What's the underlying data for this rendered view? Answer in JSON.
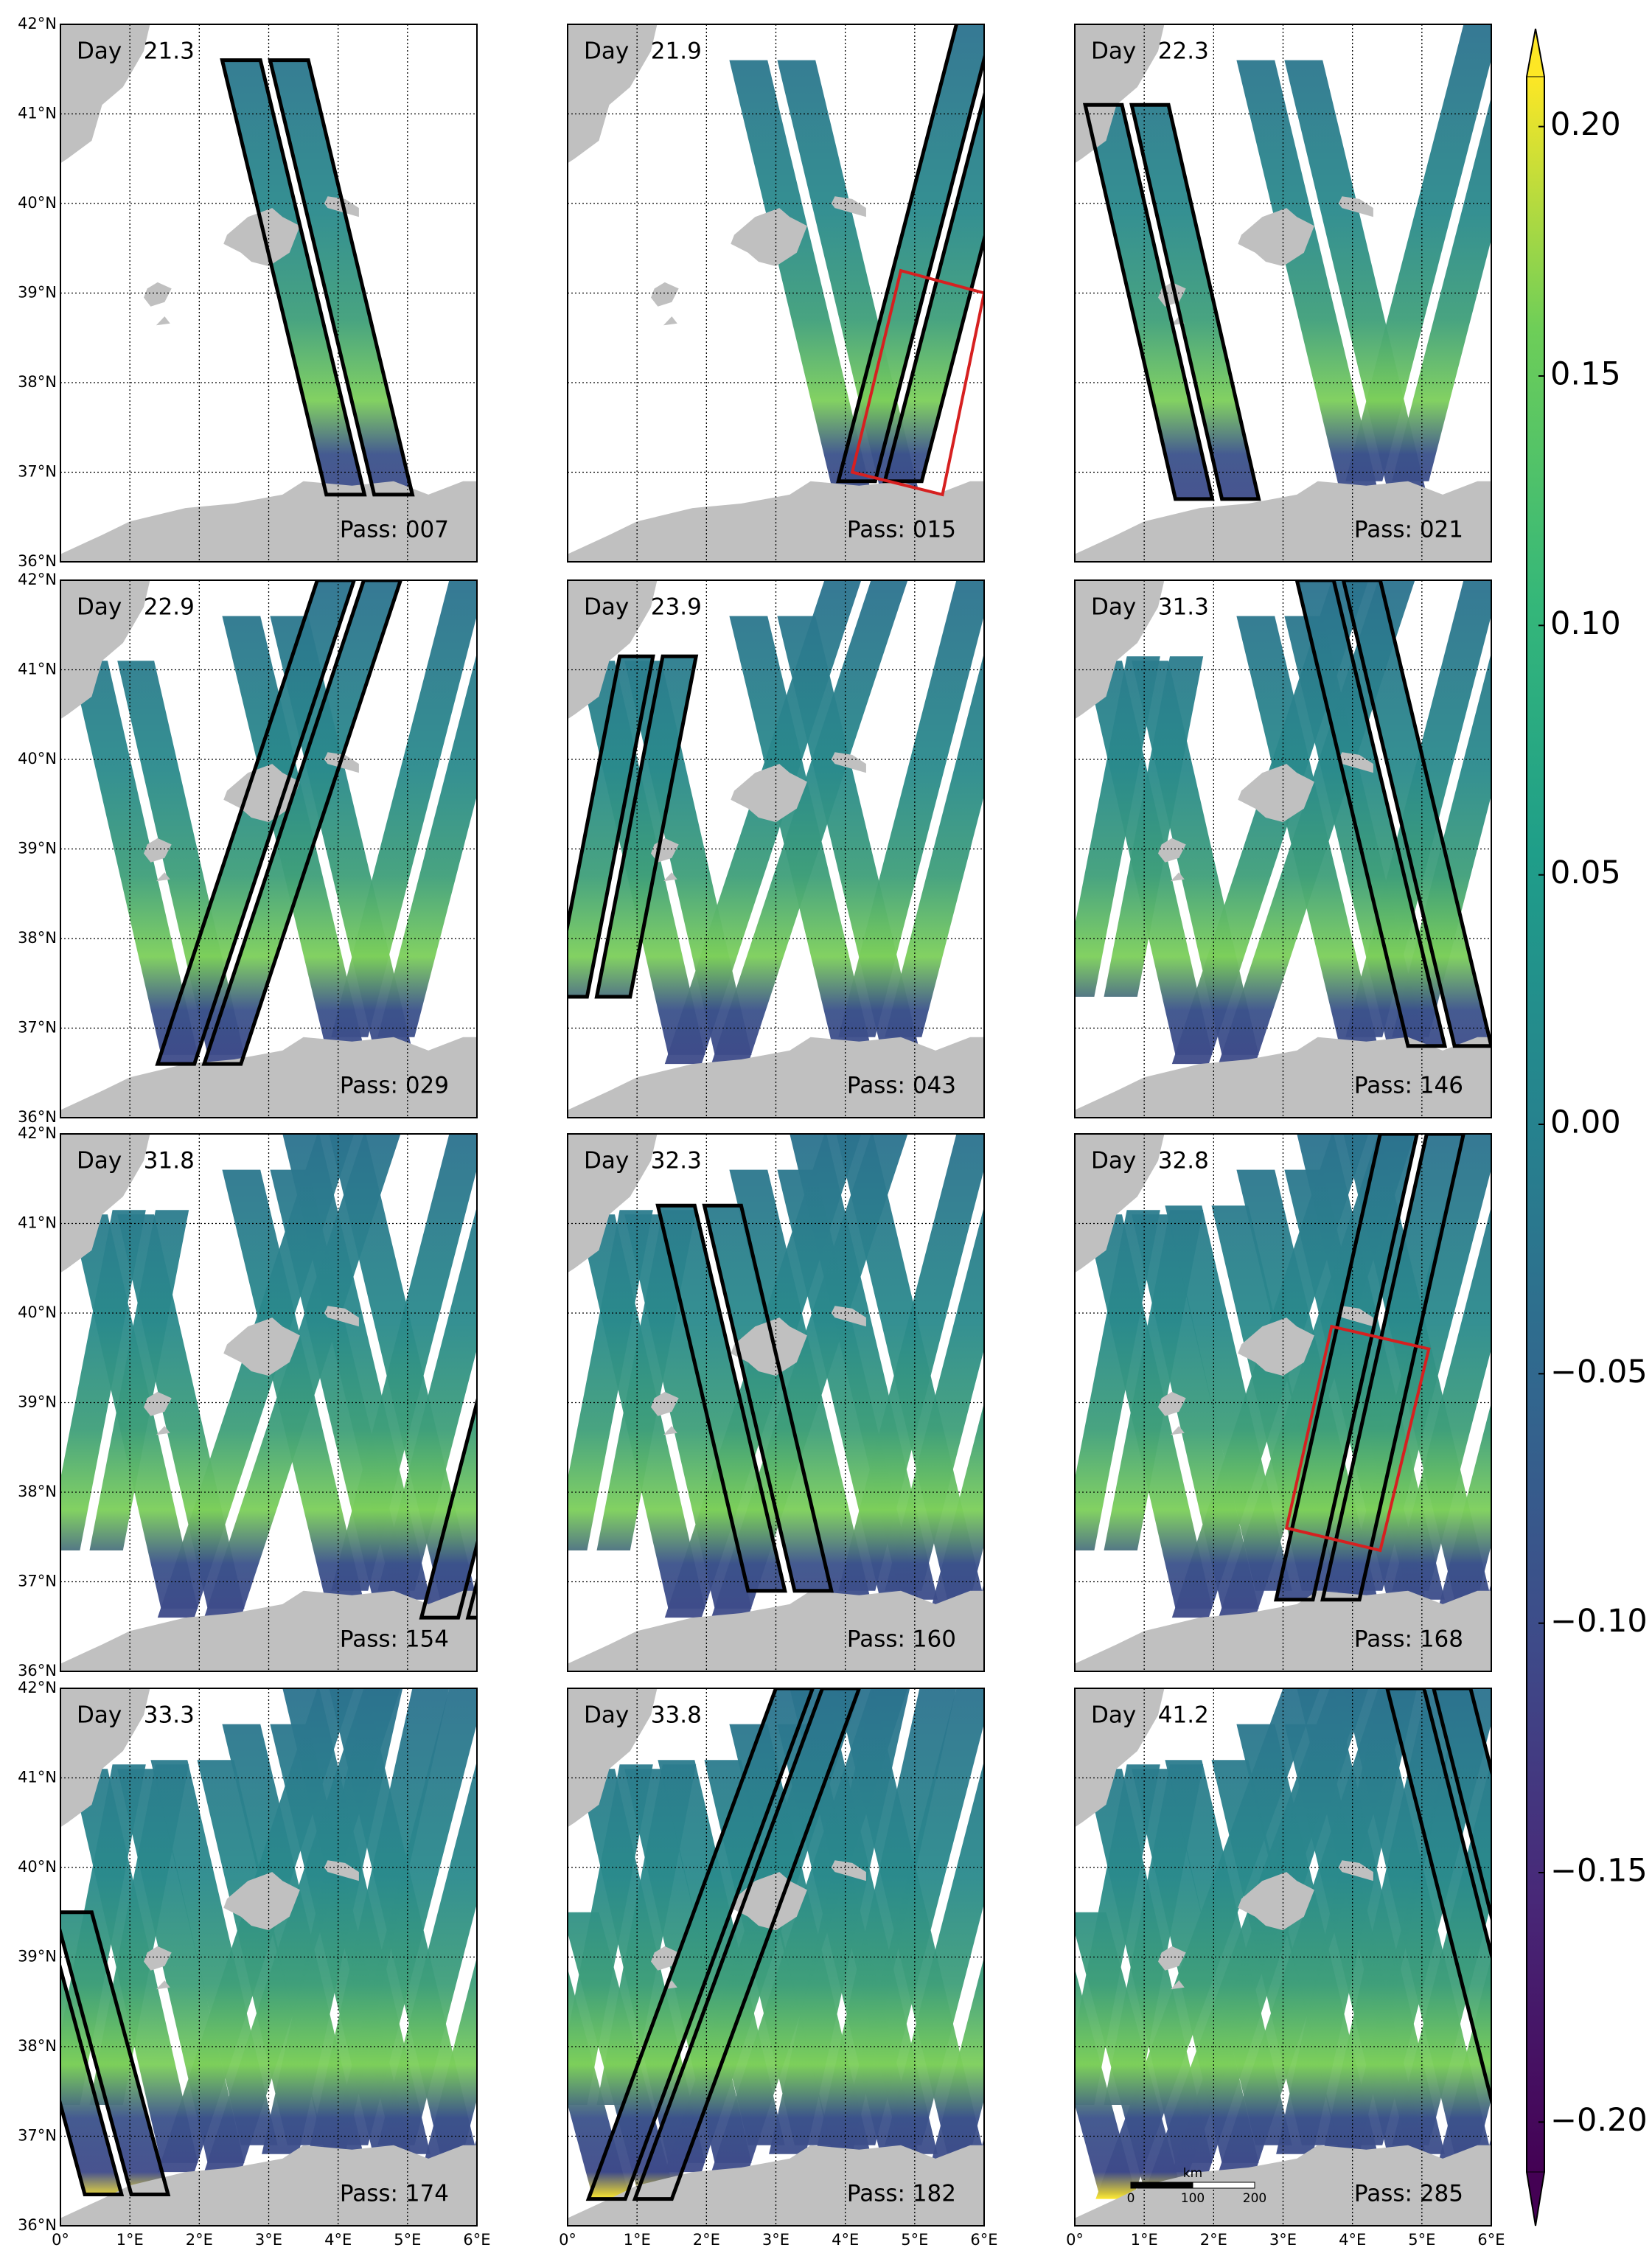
{
  "map": {
    "lon_range": [
      0,
      6
    ],
    "lat_range": [
      36,
      42
    ],
    "lat_ticks": [
      {
        "value": 36,
        "label": "36°N"
      },
      {
        "value": 37,
        "label": "37°N"
      },
      {
        "value": 38,
        "label": "38°N"
      },
      {
        "value": 39,
        "label": "39°N"
      },
      {
        "value": 40,
        "label": "40°N"
      },
      {
        "value": 41,
        "label": "41°N"
      },
      {
        "value": 42,
        "label": "42°N"
      }
    ],
    "lon_ticks": [
      {
        "value": 0,
        "label": "0°"
      },
      {
        "value": 1,
        "label": "1°E"
      },
      {
        "value": 2,
        "label": "2°E"
      },
      {
        "value": 3,
        "label": "3°E"
      },
      {
        "value": 4,
        "label": "4°E"
      },
      {
        "value": 5,
        "label": "5°E"
      },
      {
        "value": 6,
        "label": "6°E"
      }
    ],
    "panels": [
      {
        "day": "Day   21.3",
        "pass": "Pass: 007"
      },
      {
        "day": "Day   21.9",
        "pass": "Pass: 015"
      },
      {
        "day": "Day   22.3",
        "pass": "Pass: 021"
      },
      {
        "day": "Day   22.9",
        "pass": "Pass: 029"
      },
      {
        "day": "Day   23.9",
        "pass": "Pass: 043"
      },
      {
        "day": "Day   31.3",
        "pass": "Pass: 146"
      },
      {
        "day": "Day   31.8",
        "pass": "Pass: 154"
      },
      {
        "day": "Day   32.3",
        "pass": "Pass: 160"
      },
      {
        "day": "Day   32.8",
        "pass": "Pass: 168"
      },
      {
        "day": "Day   33.3",
        "pass": "Pass: 174"
      },
      {
        "day": "Day   33.8",
        "pass": "Pass: 182"
      },
      {
        "day": "Day   41.2",
        "pass": "Pass: 285"
      }
    ],
    "scalebar": {
      "unit": "km",
      "ticks": [
        0,
        100,
        200
      ]
    }
  },
  "colorbar": {
    "lim": [
      -0.21,
      0.21
    ],
    "ticks": [
      {
        "value": -0.2,
        "label": "−0.20"
      },
      {
        "value": -0.15,
        "label": "−0.15"
      },
      {
        "value": -0.1,
        "label": "−0.10"
      },
      {
        "value": -0.05,
        "label": "−0.05"
      },
      {
        "value": 0,
        "label": "0.00"
      },
      {
        "value": 0.05,
        "label": "0.05"
      },
      {
        "value": 0.1,
        "label": "0.10"
      },
      {
        "value": 0.15,
        "label": "0.15"
      },
      {
        "value": 0.2,
        "label": "0.20"
      }
    ]
  }
}
